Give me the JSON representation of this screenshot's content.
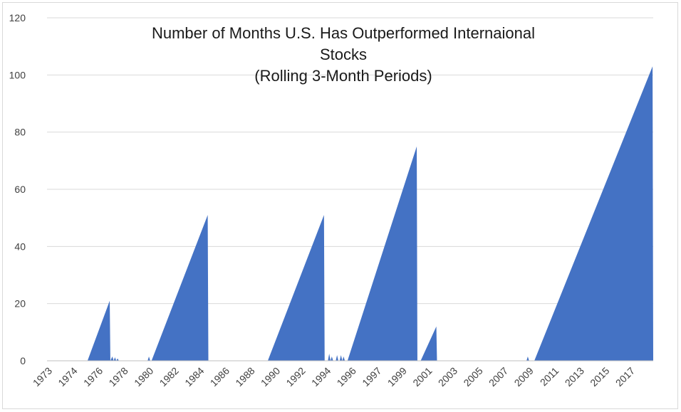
{
  "chart_data": {
    "type": "area",
    "title_lines": [
      "Number of Months U.S. Has Outperformed Internaional",
      "Stocks",
      "(Rolling 3-Month Periods)"
    ],
    "xlabel": "",
    "ylabel": "",
    "ylim": [
      0,
      120
    ],
    "yticks": [
      0,
      20,
      40,
      60,
      80,
      100,
      120
    ],
    "xlim": [
      1973.0,
      2019.4
    ],
    "xtick_labels": [
      "1973",
      "1974",
      "1976",
      "1978",
      "1980",
      "1982",
      "1984",
      "1986",
      "1988",
      "1990",
      "1992",
      "1994",
      "1996",
      "1997",
      "1999",
      "2001",
      "2003",
      "2005",
      "2007",
      "2009",
      "2011",
      "2013",
      "2015",
      "2017"
    ],
    "grid": "horizontal",
    "color": "#4472C4",
    "series": [
      {
        "x": [
          1973.0,
          1976.1,
          1977.8,
          1977.85,
          1978.0,
          1978.1,
          1978.2,
          1978.3,
          1978.4,
          1978.5,
          1978.6,
          1980.7,
          1980.8,
          1980.9,
          1981.0,
          1985.3,
          1985.35,
          1989.9,
          1994.2,
          1994.25,
          1994.5,
          1994.6,
          1994.7,
          1994.8,
          1994.9,
          1995.1,
          1995.2,
          1995.3,
          1995.4,
          1995.5,
          1995.6,
          1995.7,
          1995.8,
          1996.0,
          2001.3,
          2001.35,
          2001.6,
          2002.8,
          2002.85,
          2009.7,
          2009.8,
          2009.9,
          2010.0,
          2010.3,
          2019.35,
          2019.4
        ],
        "y": [
          0,
          0,
          21,
          0,
          1.5,
          0,
          1.2,
          0,
          0.8,
          0,
          0,
          0,
          1.5,
          0,
          0,
          51,
          0,
          0,
          51,
          0,
          0,
          2.5,
          0,
          1.5,
          0,
          0,
          2,
          0,
          0,
          2,
          0,
          1.5,
          0,
          0,
          75,
          0,
          0,
          12,
          0,
          0,
          1.5,
          0,
          0,
          0,
          103,
          0
        ]
      }
    ]
  }
}
